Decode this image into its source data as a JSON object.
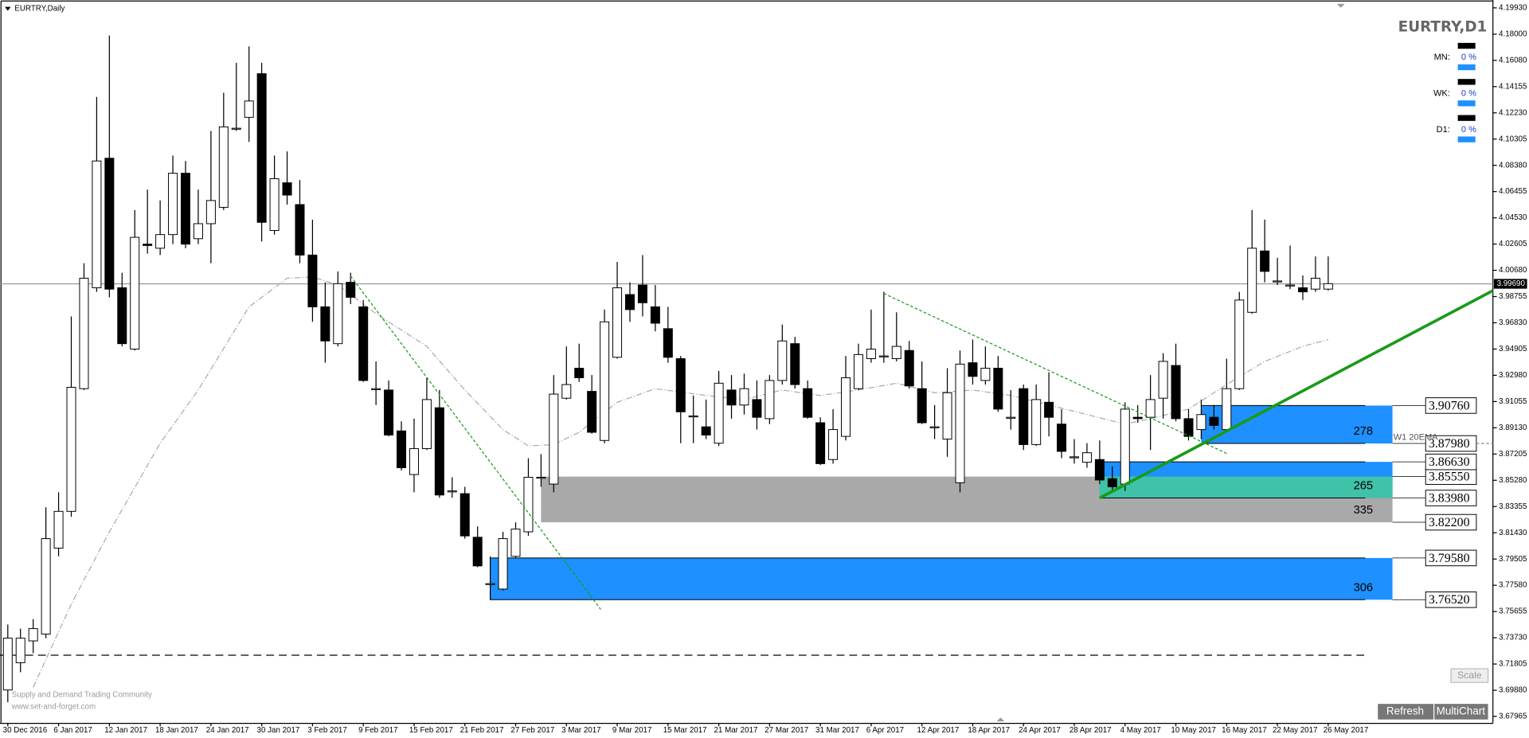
{
  "chart_data": {
    "type": "candlestick",
    "title": "EURTRY,Daily",
    "x": [
      "30 Dec 2016",
      null,
      null,
      null,
      "6 Jan 2017",
      null,
      null,
      null,
      "12 Jan 2017",
      null,
      null,
      null,
      "18 Jan 2017",
      null,
      null,
      null,
      "24 Jan 2017",
      null,
      null,
      null,
      "30 Jan 2017",
      null,
      null,
      null,
      "3 Feb 2017",
      null,
      null,
      null,
      "9 Feb 2017",
      null,
      null,
      null,
      "15 Feb 2017",
      null,
      null,
      null,
      "21 Feb 2017",
      null,
      null,
      null,
      "27 Feb 2017",
      null,
      null,
      null,
      "3 Mar 2017",
      null,
      null,
      null,
      "9 Mar 2017",
      null,
      null,
      null,
      "15 Mar 2017",
      null,
      null,
      null,
      "21 Mar 2017",
      null,
      null,
      null,
      "27 Mar 2017",
      null,
      null,
      null,
      "31 Mar 2017",
      null,
      null,
      null,
      "6 Apr 2017",
      null,
      null,
      null,
      "12 Apr 2017",
      null,
      null,
      null,
      "18 Apr 2017",
      null,
      null,
      null,
      "24 Apr 2017",
      null,
      null,
      null,
      "28 Apr 2017",
      null,
      null,
      null,
      "4 May 2017",
      null,
      null,
      null,
      "10 May 2017",
      null,
      null,
      null,
      "16 May 2017",
      null,
      null,
      null,
      "22 May 2017",
      null,
      null,
      null,
      "26 May 2017"
    ],
    "open": [
      3.699,
      3.719,
      3.735,
      3.74,
      3.803,
      3.83,
      3.92,
      3.994,
      4.089,
      3.994,
      3.949,
      4.026,
      4.023,
      4.033,
      4.078,
      4.03,
      4.041,
      4.053,
      4.111,
      4.119,
      4.151,
      4.036,
      4.071,
      4.055,
      4.018,
      3.98,
      3.953,
      3.998,
      3.98,
      3.92,
      3.919,
      3.889,
      3.857,
      3.876,
      3.906,
      3.845,
      3.843,
      3.811,
      3.777,
      3.773,
      3.797,
      3.815,
      3.855,
      3.85,
      3.913,
      3.935,
      3.918,
      3.882,
      3.943,
      3.989,
      3.996,
      3.98,
      3.964,
      3.942,
      3.9,
      3.892,
      3.88,
      3.919,
      3.908,
      3.912,
      3.898,
      3.926,
      3.953,
      3.92,
      3.895,
      3.868,
      3.885,
      3.92,
      3.942,
      3.944,
      3.942,
      3.948,
      3.92,
      3.892,
      3.883,
      3.851,
      3.939,
      3.926,
      3.935,
      3.899,
      3.92,
      3.879,
      3.91,
      3.894,
      3.87,
      3.866,
      3.868,
      3.854,
      3.85,
      3.899,
      3.899,
      3.913,
      3.937,
      3.898,
      3.89,
      3.899,
      3.89,
      3.92,
      3.976,
      4.021,
      3.999,
      3.996,
      3.994,
      3.993,
      3.993
    ],
    "high": [
      3.747,
      3.744,
      3.751,
      3.833,
      3.844,
      3.973,
      4.012,
      4.134,
      4.179,
      4.005,
      4.051,
      4.066,
      4.058,
      4.091,
      4.087,
      4.066,
      4.109,
      4.137,
      4.159,
      4.171,
      4.159,
      4.091,
      4.094,
      4.073,
      4.044,
      3.998,
      4.006,
      4.005,
      3.985,
      3.94,
      3.926,
      3.896,
      3.898,
      3.928,
      3.919,
      3.855,
      3.848,
      3.819,
      3.797,
      3.815,
      3.822,
      3.869,
      3.872,
      3.93,
      3.951,
      3.953,
      3.93,
      3.978,
      4.013,
      3.998,
      4.018,
      3.996,
      3.98,
      3.944,
      3.915,
      3.912,
      3.933,
      3.93,
      3.931,
      3.926,
      3.93,
      3.967,
      3.958,
      3.926,
      3.899,
      3.905,
      3.944,
      3.953,
      3.978,
      3.991,
      3.976,
      3.955,
      3.94,
      3.908,
      3.935,
      3.948,
      3.956,
      3.951,
      3.944,
      3.919,
      3.923,
      3.923,
      3.932,
      3.905,
      3.883,
      3.88,
      3.882,
      3.863,
      3.91,
      3.908,
      3.93,
      3.946,
      3.953,
      3.905,
      3.912,
      3.908,
      3.942,
      3.991,
      4.051,
      4.044,
      4.016,
      4.025,
      4.003,
      4.017,
      4.017
    ],
    "low": [
      3.69,
      3.712,
      3.726,
      3.737,
      3.797,
      3.826,
      3.919,
      3.991,
      3.987,
      3.951,
      3.948,
      4.019,
      4.018,
      4.026,
      4.023,
      4.026,
      4.012,
      4.051,
      4.109,
      4.101,
      4.028,
      4.033,
      4.055,
      4.012,
      3.969,
      3.939,
      3.951,
      3.982,
      3.925,
      3.908,
      3.885,
      3.86,
      3.844,
      3.875,
      3.84,
      3.84,
      3.81,
      3.789,
      3.765,
      3.772,
      3.796,
      3.812,
      3.848,
      3.844,
      3.912,
      3.925,
      3.887,
      3.88,
      3.942,
      3.969,
      3.973,
      3.962,
      3.939,
      3.88,
      3.88,
      3.883,
      3.878,
      3.898,
      3.901,
      3.89,
      3.894,
      3.923,
      3.92,
      3.898,
      3.864,
      3.865,
      3.882,
      3.919,
      3.939,
      3.939,
      3.94,
      3.92,
      3.894,
      3.883,
      3.87,
      3.844,
      3.923,
      3.923,
      3.903,
      3.89,
      3.875,
      3.878,
      3.885,
      3.869,
      3.865,
      3.862,
      3.85,
      3.845,
      3.845,
      3.895,
      3.875,
      3.898,
      3.896,
      3.882,
      3.883,
      3.89,
      3.889,
      3.919,
      3.975,
      3.998,
      3.996,
      3.993,
      3.985,
      3.991,
      3.992
    ],
    "close": [
      3.737,
      3.737,
      3.744,
      3.81,
      3.83,
      3.921,
      4.001,
      4.087,
      3.993,
      3.953,
      4.031,
      4.025,
      4.033,
      4.078,
      4.026,
      4.041,
      4.058,
      4.112,
      4.111,
      4.131,
      4.042,
      4.074,
      4.062,
      4.018,
      3.98,
      3.955,
      3.997,
      3.987,
      3.926,
      3.92,
      3.886,
      3.862,
      3.876,
      3.912,
      3.842,
      3.845,
      3.812,
      3.79,
      3.777,
      3.81,
      3.817,
      3.855,
      3.855,
      3.916,
      3.923,
      3.928,
      3.888,
      3.969,
      3.994,
      3.978,
      3.983,
      3.968,
      3.943,
      3.903,
      3.9,
      3.886,
      3.924,
      3.908,
      3.92,
      3.899,
      3.926,
      3.955,
      3.923,
      3.899,
      3.865,
      3.89,
      3.928,
      3.945,
      3.949,
      3.944,
      3.951,
      3.922,
      3.895,
      3.892,
      3.917,
      3.938,
      3.929,
      3.935,
      3.905,
      3.899,
      3.879,
      3.912,
      3.899,
      3.874,
      3.87,
      3.873,
      3.853,
      3.848,
      3.905,
      3.898,
      3.912,
      3.94,
      3.898,
      3.885,
      3.901,
      3.893,
      3.92,
      3.985,
      4.023,
      4.006,
      3.999,
      3.996,
      3.991,
      4.001,
      3.997
    ],
    "up_color": "#ffffff",
    "down_color": "#000000",
    "ylim": [
      3.6745,
      4.2022
    ],
    "yticks": [
      {
        "value": 4.1993,
        "label": "4.19930"
      },
      {
        "value": 4.18,
        "label": "4.18000"
      },
      {
        "value": 4.1608,
        "label": "4.16080"
      },
      {
        "value": 4.14155,
        "label": "4.14155"
      },
      {
        "value": 4.1223,
        "label": "4.12230"
      },
      {
        "value": 4.10305,
        "label": "4.10305"
      },
      {
        "value": 4.0838,
        "label": "4.08380"
      },
      {
        "value": 4.06455,
        "label": "4.06455"
      },
      {
        "value": 4.0453,
        "label": "4.04530"
      },
      {
        "value": 4.02605,
        "label": "4.02605"
      },
      {
        "value": 4.0068,
        "label": "4.00680"
      },
      {
        "value": 3.98755,
        "label": "3.98755"
      },
      {
        "value": 3.9683,
        "label": "3.96830"
      },
      {
        "value": 3.94905,
        "label": "3.94905"
      },
      {
        "value": 3.9298,
        "label": "3.92980"
      },
      {
        "value": 3.91055,
        "label": "3.91055"
      },
      {
        "value": 3.8913,
        "label": "3.89130"
      },
      {
        "value": 3.87205,
        "label": "3.87205"
      },
      {
        "value": 3.8528,
        "label": "3.85280"
      },
      {
        "value": 3.83355,
        "label": "3.83355"
      },
      {
        "value": 3.8143,
        "label": "3.81430"
      },
      {
        "value": 3.79505,
        "label": "3.79505"
      },
      {
        "value": 3.7758,
        "label": "3.77580"
      },
      {
        "value": 3.75655,
        "label": "3.75655"
      },
      {
        "value": 3.7373,
        "label": "3.73730"
      },
      {
        "value": 3.71805,
        "label": "3.71805"
      },
      {
        "value": 3.6988,
        "label": "3.69880"
      },
      {
        "value": 3.67965,
        "label": "3.67965"
      }
    ],
    "current_price": {
      "value": 3.9969,
      "label": "3.99690"
    },
    "moving_average": {
      "color": "#aaaaaa",
      "x": [
        2,
        5,
        8,
        12,
        15,
        19,
        22,
        24,
        26,
        29,
        33,
        36,
        39,
        41,
        43,
        45,
        48,
        51,
        55,
        58,
        61,
        64,
        67,
        70,
        73,
        76,
        79,
        82,
        85,
        88,
        90,
        93,
        96,
        99,
        102,
        104
      ],
      "values": [
        3.701,
        3.762,
        3.815,
        3.88,
        3.919,
        3.98,
        4.001,
        4.002,
        3.996,
        3.975,
        3.951,
        3.919,
        3.89,
        3.878,
        3.879,
        3.888,
        3.91,
        3.92,
        3.915,
        3.912,
        3.919,
        3.915,
        3.919,
        3.924,
        3.917,
        3.919,
        3.915,
        3.908,
        3.901,
        3.894,
        3.898,
        3.905,
        3.923,
        3.94,
        3.951,
        3.956
      ]
    },
    "trendlines": [
      {
        "x": [
          86,
          117
        ],
        "values": [
          3.8398,
          3.9919
        ],
        "color": "#1a9a1a",
        "style": "solid"
      },
      {
        "x": [
          27,
          46.7
        ],
        "values": [
          4.0027,
          3.7581
        ],
        "color": "#1a9a1a",
        "style": "dashed"
      },
      {
        "x": [
          69,
          96
        ],
        "values": [
          3.9898,
          3.8725
        ],
        "color": "#1a9a1a",
        "style": "dashed"
      }
    ],
    "hlines": [
      {
        "value": 3.7245,
        "color": "#000000",
        "style": "dashed"
      }
    ],
    "zones": [
      {
        "top": {
          "value": 3.9076,
          "label": "3.90760"
        },
        "bottom": {
          "value": 3.8798,
          "label": "3.87980"
        },
        "start": 94,
        "size": 278,
        "color": "#1e90ff"
      },
      {
        "top": {
          "value": 3.8555,
          "label": "3.85550"
        },
        "bottom": {
          "value": 3.822,
          "label": "3.82200"
        },
        "start": 42,
        "size": 335,
        "color": "#a9a9a9"
      },
      {
        "top": {
          "value": 3.8663,
          "label": "3.86630"
        },
        "bottom": {
          "value": 3.8398,
          "label": "3.83980"
        },
        "start": 86,
        "size": 265,
        "color": "#1e90ff",
        "overlap_color": "#3fc2a8"
      },
      {
        "top": {
          "value": 3.7958,
          "label": "3.79580"
        },
        "bottom": {
          "value": 3.7652,
          "label": "3.76520"
        },
        "start": 38,
        "size": 306,
        "color": "#1e90ff"
      }
    ],
    "annotations": [
      {
        "text": "W1 20EMA",
        "value": 3.8798
      }
    ]
  },
  "panel": {
    "title": "EURTRY,D1",
    "rows": [
      {
        "label": "MN:",
        "value": "0 %"
      },
      {
        "label": "WK:",
        "value": "0 %"
      },
      {
        "label": "D1:",
        "value": "0 %"
      }
    ]
  },
  "watermark": [
    "Supply and Demand Trading Community",
    "www.set-and-forget.com"
  ],
  "buttons": {
    "scale": "Scale",
    "refresh": "Refresh",
    "multichart": "MultiChart"
  }
}
